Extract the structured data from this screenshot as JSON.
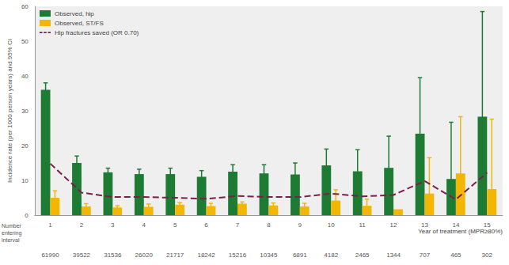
{
  "chart_data": {
    "type": "bar",
    "x_label": "Year of treatment (MPR≥80%)",
    "y_label": "Incidence rate (per 1000 person years) and 95% CI",
    "categories": [
      "1",
      "2",
      "3",
      "4",
      "5",
      "6",
      "7",
      "8",
      "9",
      "10",
      "11",
      "12",
      "13",
      "14",
      "15"
    ],
    "ylim": [
      0,
      60
    ],
    "yticks": [
      0,
      10,
      20,
      30,
      40,
      50,
      60
    ],
    "grid": false,
    "legend": "upper left",
    "series": [
      {
        "name": "Observed, hip",
        "type": "bar",
        "color": "#1e7b34",
        "values": [
          36,
          15,
          12.3,
          11.8,
          11.8,
          11,
          12.5,
          12,
          11.7,
          14.3,
          12.6,
          13.6,
          23.4,
          10.4,
          28.3
        ],
        "ci_low": [
          34,
          14,
          11,
          10.8,
          10.8,
          9.7,
          11,
          10,
          9.5,
          11,
          9.3,
          9,
          15,
          5,
          15
        ],
        "ci_high": [
          38,
          17,
          13.5,
          13.2,
          13.5,
          12.8,
          14.5,
          14.5,
          15,
          19,
          18.8,
          22.7,
          39.5,
          26.7,
          58.5
        ]
      },
      {
        "name": "Observed, ST/FS",
        "type": "bar",
        "color": "#f2b705",
        "values": [
          5,
          2.5,
          2.2,
          2.4,
          3,
          2.6,
          3.3,
          2.8,
          2.5,
          4.2,
          2.7,
          1.7,
          6.2,
          12,
          7.5
        ],
        "ci_low": [
          4,
          2,
          1.6,
          1.8,
          2.2,
          1.9,
          2.5,
          1.9,
          1.6,
          2.9,
          1.6,
          null,
          3,
          5.5,
          3
        ],
        "ci_high": [
          7,
          3.3,
          2.7,
          3.2,
          3.6,
          3.4,
          3.8,
          3.5,
          3.4,
          7.3,
          4.6,
          null,
          16.5,
          28.3,
          27.6
        ]
      },
      {
        "name": "Hip fractures saved (OR 0.70)",
        "type": "line",
        "color": "#7b1f4b",
        "line_style": "dashed",
        "values": [
          14.8,
          6.5,
          5.2,
          5.2,
          5,
          4.7,
          5.5,
          5.2,
          5.2,
          6.2,
          5.4,
          5.8,
          9.8,
          4.5,
          12.2
        ]
      }
    ],
    "number_entering": {
      "label": "Number entering interval",
      "values": [
        61990,
        39522,
        31536,
        26020,
        21717,
        18242,
        15216,
        10345,
        6891,
        4182,
        2465,
        1344,
        707,
        465,
        302
      ]
    }
  }
}
